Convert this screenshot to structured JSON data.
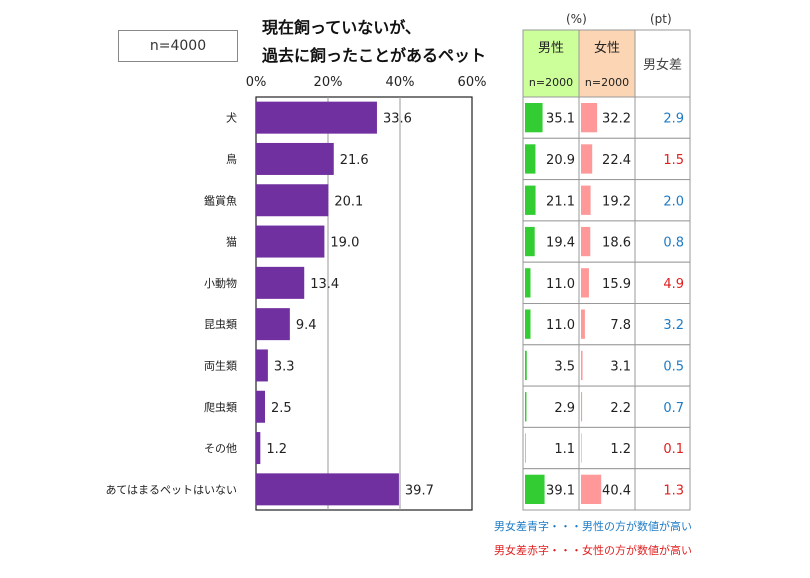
{
  "sample_box": "n=4000",
  "title_line1": "現在飼っていないが、",
  "title_line2": "過去に飼ったことがあるペット",
  "unit_pct": "(%)",
  "unit_pt": "(pt)",
  "col_male": "男性",
  "col_male_n": "n=2000",
  "col_female": "女性",
  "col_female_n": "n=2000",
  "col_diff": "男女差",
  "note_blue": "男女差青字・・・男性の方が数値が高い",
  "note_red": "男女差赤字・・・女性の方が数値が高い",
  "colors": {
    "bar": "#7030a0",
    "male_bar": "#33cc33",
    "female_bar": "#ff9999",
    "male_head": "#ccff99",
    "female_head": "#fcd5b4",
    "blue": "#1f7bc4",
    "red": "#e02020"
  },
  "chart_data": {
    "type": "bar",
    "orientation": "horizontal",
    "xlim": [
      0,
      60
    ],
    "xticks": [
      "0%",
      "20%",
      "40%",
      "60%"
    ],
    "categories": [
      "犬",
      "鳥",
      "鑑賞魚",
      "猫",
      "小動物",
      "昆虫類",
      "両生類",
      "爬虫類",
      "その他",
      "あてはまるペットはいない"
    ],
    "values": [
      33.6,
      21.6,
      20.1,
      19.0,
      13.4,
      9.4,
      3.3,
      2.5,
      1.2,
      39.7
    ],
    "labels": [
      "33.6",
      "21.6",
      "20.1",
      "19.0",
      "13.4",
      "9.4",
      "3.3",
      "2.5",
      "1.2",
      "39.7"
    ],
    "grid": true,
    "table": {
      "male": [
        35.1,
        20.9,
        21.1,
        19.4,
        11.0,
        11.0,
        3.5,
        2.9,
        1.1,
        39.1
      ],
      "male_labels": [
        "35.1",
        "20.9",
        "21.1",
        "19.4",
        "11.0",
        "11.0",
        "3.5",
        "2.9",
        "1.1",
        "39.1"
      ],
      "female": [
        32.2,
        22.4,
        19.2,
        18.6,
        15.9,
        7.8,
        3.1,
        2.2,
        1.2,
        40.4
      ],
      "female_labels": [
        "32.2",
        "22.4",
        "19.2",
        "18.6",
        "15.9",
        "7.8",
        "3.1",
        "2.2",
        "1.2",
        "40.4"
      ],
      "diff": [
        "2.9",
        "1.5",
        "2.0",
        "0.8",
        "4.9",
        "3.2",
        "0.5",
        "0.7",
        "0.1",
        "1.3"
      ],
      "diff_color": [
        "blue",
        "red",
        "blue",
        "blue",
        "red",
        "blue",
        "blue",
        "blue",
        "red",
        "red"
      ]
    }
  }
}
